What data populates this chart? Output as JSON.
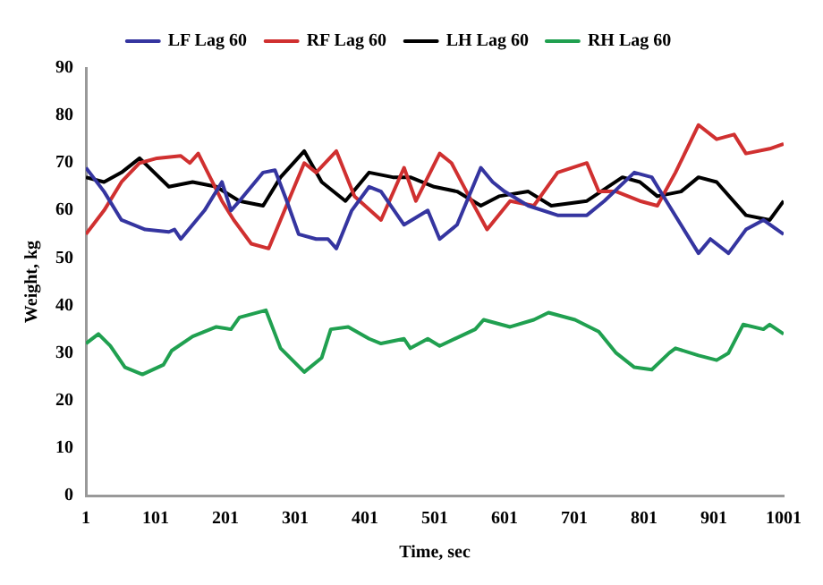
{
  "chart_data": {
    "type": "line",
    "xlabel": "Time, sec",
    "ylabel": "Weight, kg",
    "xlim": [
      1,
      1001
    ],
    "xticks": [
      1,
      101,
      201,
      301,
      401,
      501,
      601,
      701,
      801,
      901,
      1001
    ],
    "ylim": [
      0,
      90
    ],
    "yticks": [
      0,
      10,
      20,
      30,
      40,
      50,
      60,
      70,
      80,
      90
    ],
    "grid": false,
    "legend": "top",
    "marker": "none",
    "line_style": "solid",
    "series": [
      {
        "name": "LF Lag 60",
        "color": "#3535a0",
        "x": [
          1,
          27,
          52,
          86,
          120,
          128,
          137,
          171,
          196,
          209,
          221,
          255,
          272,
          289,
          306,
          331,
          348,
          360,
          382,
          407,
          424,
          457,
          491,
          508,
          533,
          567,
          584,
          601,
          635,
          677,
          719,
          744,
          787,
          812,
          837,
          879,
          896,
          922,
          947,
          972,
          1001
        ],
        "values": [
          69,
          64,
          58,
          56,
          55.5,
          56,
          54,
          60,
          66,
          60,
          62,
          68,
          68.5,
          62,
          55,
          54,
          54,
          52,
          60,
          65,
          64,
          57,
          60,
          54,
          57,
          69,
          66,
          64,
          61,
          59,
          59,
          62,
          68,
          67,
          61,
          51,
          54,
          51,
          56,
          58,
          55
        ]
      },
      {
        "name": "RF Lag 60",
        "color": "#d03030",
        "x": [
          1,
          27,
          52,
          78,
          103,
          137,
          150,
          162,
          196,
          213,
          238,
          263,
          297,
          314,
          331,
          360,
          386,
          424,
          457,
          474,
          508,
          525,
          550,
          576,
          609,
          643,
          677,
          719,
          736,
          761,
          795,
          820,
          846,
          879,
          905,
          930,
          947,
          981,
          1001
        ],
        "values": [
          55,
          60,
          66,
          70,
          71,
          71.5,
          70,
          72,
          62,
          58,
          53,
          52,
          64,
          70,
          68,
          72.5,
          63,
          58,
          69,
          62,
          72,
          70,
          63,
          56,
          62,
          61,
          68,
          70,
          64,
          64,
          62,
          61,
          68,
          78,
          75,
          76,
          72,
          73,
          74
        ]
      },
      {
        "name": "LH Lag 60",
        "color": "#000000",
        "x": [
          1,
          27,
          52,
          78,
          99,
          120,
          154,
          188,
          221,
          255,
          280,
          314,
          339,
          373,
          407,
          441,
          466,
          500,
          533,
          567,
          593,
          635,
          668,
          719,
          770,
          795,
          820,
          854,
          879,
          905,
          947,
          981,
          1001
        ],
        "values": [
          67,
          66,
          68,
          71,
          68,
          65,
          66,
          65,
          62,
          61,
          67,
          72.5,
          66,
          62,
          68,
          67,
          67,
          65,
          64,
          61,
          63,
          64,
          61,
          62,
          67,
          66,
          63,
          64,
          67,
          66,
          59,
          58,
          62
        ]
      },
      {
        "name": "RH Lag 60",
        "color": "#20a050",
        "x": [
          1,
          19,
          36,
          57,
          82,
          112,
          124,
          154,
          188,
          209,
          221,
          259,
          280,
          314,
          339,
          352,
          377,
          407,
          424,
          457,
          466,
          491,
          508,
          559,
          571,
          609,
          643,
          664,
          702,
          736,
          761,
          787,
          812,
          837,
          846,
          879,
          905,
          922,
          943,
          972,
          981,
          1001
        ],
        "values": [
          32,
          34,
          31.5,
          27,
          25.5,
          27.5,
          30.5,
          33.5,
          35.5,
          35,
          37.5,
          39,
          31,
          26,
          29,
          35,
          35.5,
          33,
          32,
          33,
          31,
          33,
          31.5,
          35,
          37,
          35.5,
          37,
          38.5,
          37,
          34.5,
          30,
          27,
          26.5,
          30,
          31,
          29.5,
          28.5,
          30,
          36,
          35,
          36,
          34
        ]
      }
    ]
  }
}
